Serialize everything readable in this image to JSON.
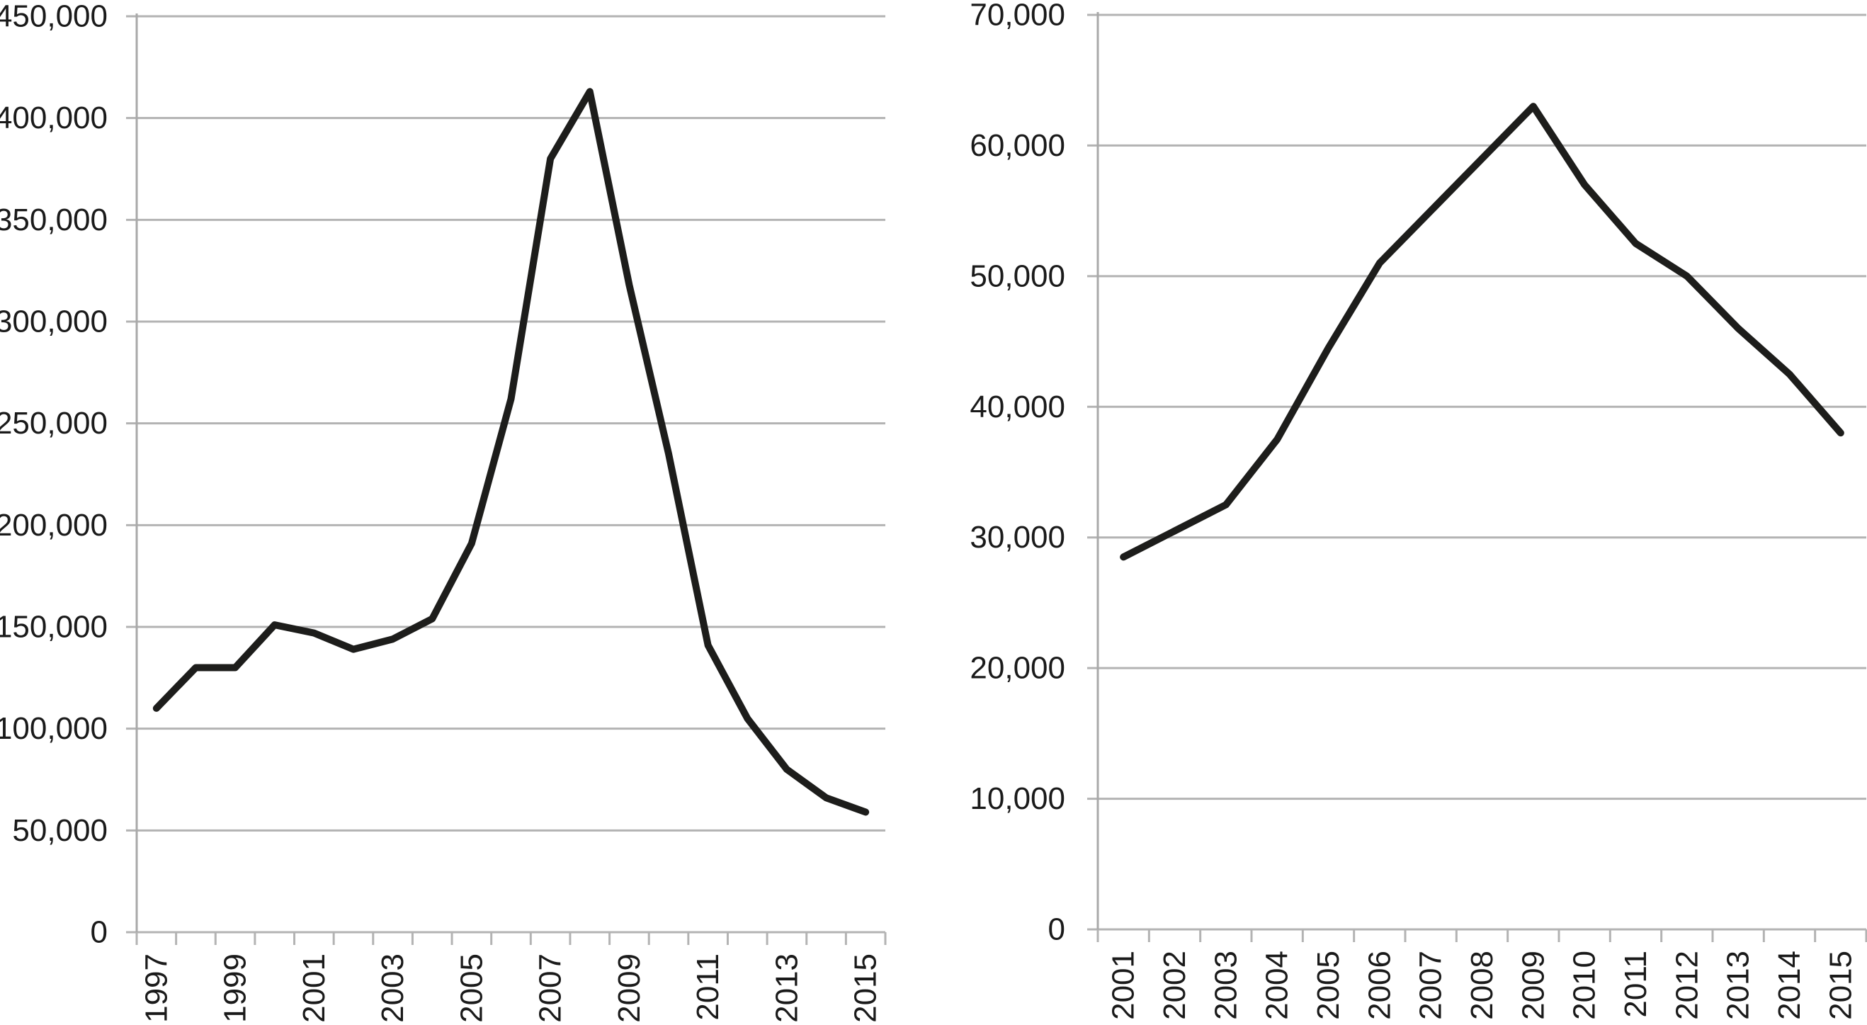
{
  "figure": {
    "background": "#ffffff",
    "description_visible_text_only": true
  },
  "chart_data": [
    {
      "type": "line",
      "title": "",
      "xlabel": "",
      "ylabel": "",
      "grid": true,
      "legend": null,
      "x": [
        1997,
        1998,
        1999,
        2000,
        2001,
        2002,
        2003,
        2004,
        2005,
        2006,
        2007,
        2008,
        2009,
        2010,
        2011,
        2012,
        2013,
        2014,
        2015
      ],
      "values": [
        110000,
        130000,
        130000,
        151000,
        147000,
        139000,
        144000,
        154000,
        191000,
        262000,
        380000,
        413000,
        318000,
        235000,
        141000,
        105000,
        80000,
        66000,
        59000
      ],
      "x_tick_labels": [
        "1997",
        "1999",
        "2001",
        "2003",
        "2005",
        "2007",
        "2009",
        "2011",
        "2013",
        "2015"
      ],
      "y_tick_labels": [
        "0",
        "50,000",
        "100,000",
        "150,000",
        "200,000",
        "250,000",
        "300,000",
        "350,000",
        "400,000",
        "450,000"
      ],
      "y_tick_values": [
        0,
        50000,
        100000,
        150000,
        200000,
        250000,
        300000,
        350000,
        400000,
        450000
      ],
      "ylim": [
        0,
        450000
      ],
      "line_color": "#1d1d1b",
      "grid_color": "#b3b3b3",
      "axis_color": "#a9a9a9",
      "label_color": "#1a1a1a"
    },
    {
      "type": "line",
      "title": "",
      "xlabel": "",
      "ylabel": "",
      "grid": true,
      "legend": null,
      "x": [
        2001,
        2002,
        2003,
        2004,
        2005,
        2006,
        2007,
        2008,
        2009,
        2010,
        2011,
        2012,
        2013,
        2014,
        2015
      ],
      "values": [
        28500,
        30500,
        32500,
        37500,
        44500,
        51000,
        55000,
        59000,
        63000,
        57000,
        52500,
        50000,
        46000,
        42500,
        38000
      ],
      "x_tick_labels": [
        "2001",
        "2002",
        "2003",
        "2004",
        "2005",
        "2006",
        "2007",
        "2008",
        "2009",
        "2010",
        "2011",
        "2012",
        "2013",
        "2014",
        "2015"
      ],
      "y_tick_labels": [
        "0",
        "10,000",
        "20,000",
        "30,000",
        "40,000",
        "50,000",
        "60,000",
        "70,000"
      ],
      "y_tick_values": [
        0,
        10000,
        20000,
        30000,
        40000,
        50000,
        60000,
        70000
      ],
      "ylim": [
        0,
        70000
      ],
      "line_color": "#1d1d1b",
      "grid_color": "#b3b3b3",
      "axis_color": "#a9a9a9",
      "label_color": "#1a1a1a"
    }
  ]
}
